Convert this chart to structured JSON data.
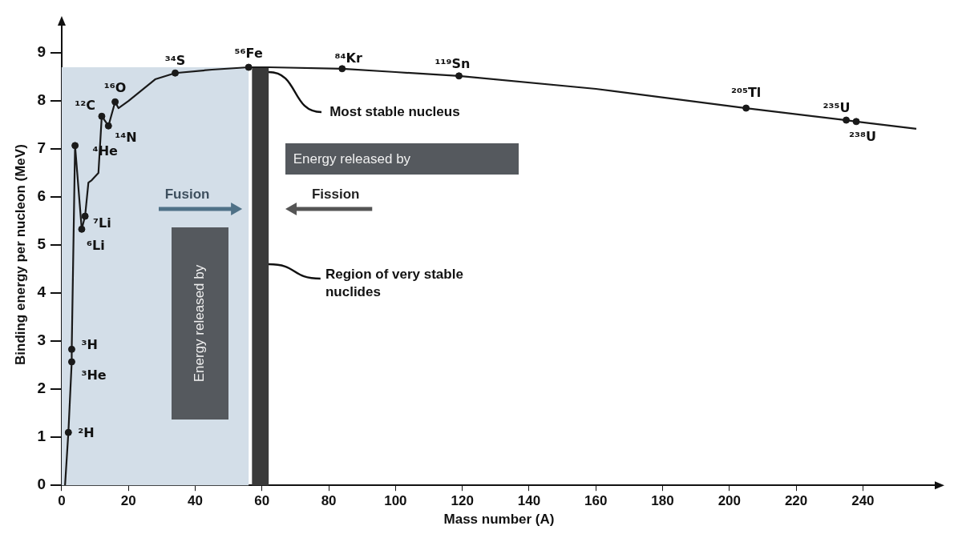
{
  "chart_data": {
    "type": "line",
    "xlabel": "Mass number (A)",
    "ylabel": "Binding energy per nucleon (MeV)",
    "xlim": [
      0,
      262
    ],
    "ylim": [
      0,
      9.6
    ],
    "xticks": [
      0,
      20,
      40,
      60,
      80,
      100,
      120,
      140,
      160,
      180,
      200,
      220,
      240
    ],
    "yticks": [
      0,
      1,
      2,
      3,
      4,
      5,
      6,
      7,
      8,
      9
    ],
    "grid": false,
    "legend": false,
    "line_style": "solid",
    "series": [
      {
        "type": "line",
        "color": "#1a1a1a",
        "marker": "none",
        "x": [
          1,
          2,
          3,
          3,
          4,
          6,
          7,
          8,
          9,
          11,
          12,
          14,
          16,
          17,
          20,
          28,
          34,
          45,
          56,
          62,
          84,
          100,
          119,
          160,
          205,
          235,
          238,
          256
        ],
        "values": [
          0,
          1.1,
          2.57,
          2.83,
          7.07,
          5.33,
          5.6,
          6.3,
          6.35,
          6.5,
          7.68,
          7.48,
          7.98,
          7.85,
          8.0,
          8.45,
          8.58,
          8.65,
          8.7,
          8.7,
          8.67,
          8.6,
          8.52,
          8.25,
          7.85,
          7.6,
          7.57,
          7.42
        ]
      },
      {
        "type": "scatter",
        "color": "#1a1a1a",
        "marker": "circle",
        "x": [
          2,
          3,
          3,
          4,
          6,
          7,
          12,
          14,
          16,
          34,
          56,
          84,
          119,
          205,
          235,
          238
        ],
        "values": [
          1.1,
          2.57,
          2.83,
          7.07,
          5.33,
          5.6,
          7.68,
          7.48,
          7.98,
          8.58,
          8.7,
          8.67,
          8.52,
          7.85,
          7.6,
          7.57
        ]
      }
    ],
    "bands": [
      {
        "axis": "x",
        "from": 0,
        "to": 56,
        "color": "#d3dee8"
      },
      {
        "axis": "x",
        "from": 57,
        "to": 62,
        "color": "#3a3a3a",
        "label": "Region of very stable nuclides"
      }
    ],
    "annotations": [
      {
        "text": "²H",
        "x": 2,
        "y": 1.1
      },
      {
        "text": "³He",
        "x": 3,
        "y": 2.57
      },
      {
        "text": "³H",
        "x": 3,
        "y": 2.83
      },
      {
        "text": "⁴He",
        "x": 4,
        "y": 7.07
      },
      {
        "text": "⁶Li",
        "x": 6,
        "y": 5.33
      },
      {
        "text": "⁷Li",
        "x": 7,
        "y": 5.6
      },
      {
        "text": "¹²C",
        "x": 12,
        "y": 7.68
      },
      {
        "text": "¹⁴N",
        "x": 14,
        "y": 7.48
      },
      {
        "text": "¹⁶O",
        "x": 16,
        "y": 7.98
      },
      {
        "text": "³⁴S",
        "x": 34,
        "y": 8.58
      },
      {
        "text": "⁵⁶Fe",
        "x": 56,
        "y": 8.7
      },
      {
        "text": "⁸⁴Kr",
        "x": 84,
        "y": 8.67
      },
      {
        "text": "¹¹⁹Sn",
        "x": 119,
        "y": 8.52
      },
      {
        "text": "²⁰⁵Tl",
        "x": 205,
        "y": 7.85
      },
      {
        "text": "²³⁵U",
        "x": 235,
        "y": 7.6
      },
      {
        "text": "²³⁸U",
        "x": 238,
        "y": 7.57
      },
      {
        "text": "Most stable nucleus",
        "x": 62,
        "y": 8.6
      },
      "Energy released by",
      "Fusion",
      "Energy released by",
      "Fission"
    ]
  }
}
